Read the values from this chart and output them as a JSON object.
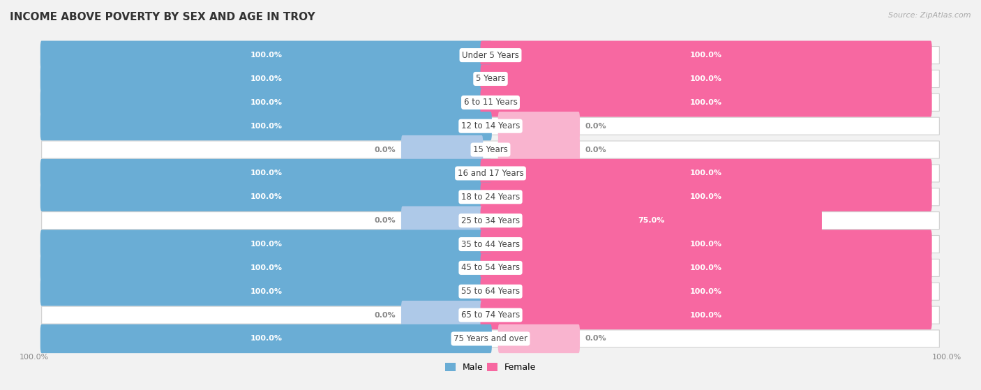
{
  "title": "INCOME ABOVE POVERTY BY SEX AND AGE IN TROY",
  "source": "Source: ZipAtlas.com",
  "categories": [
    "Under 5 Years",
    "5 Years",
    "6 to 11 Years",
    "12 to 14 Years",
    "15 Years",
    "16 and 17 Years",
    "18 to 24 Years",
    "25 to 34 Years",
    "35 to 44 Years",
    "45 to 54 Years",
    "55 to 64 Years",
    "65 to 74 Years",
    "75 Years and over"
  ],
  "male": [
    100.0,
    100.0,
    100.0,
    100.0,
    0.0,
    100.0,
    100.0,
    0.0,
    100.0,
    100.0,
    100.0,
    0.0,
    100.0
  ],
  "female": [
    100.0,
    100.0,
    100.0,
    0.0,
    0.0,
    100.0,
    100.0,
    75.0,
    100.0,
    100.0,
    100.0,
    100.0,
    0.0
  ],
  "male_color": "#6aadd5",
  "female_color": "#f768a1",
  "male_color_zero": "#aec9e8",
  "female_color_zero": "#f9b4cf",
  "bg_color": "#f2f2f2",
  "row_bg": "#ffffff",
  "bar_height": 0.62,
  "max_val": 100.0,
  "zero_stub": 18.0
}
